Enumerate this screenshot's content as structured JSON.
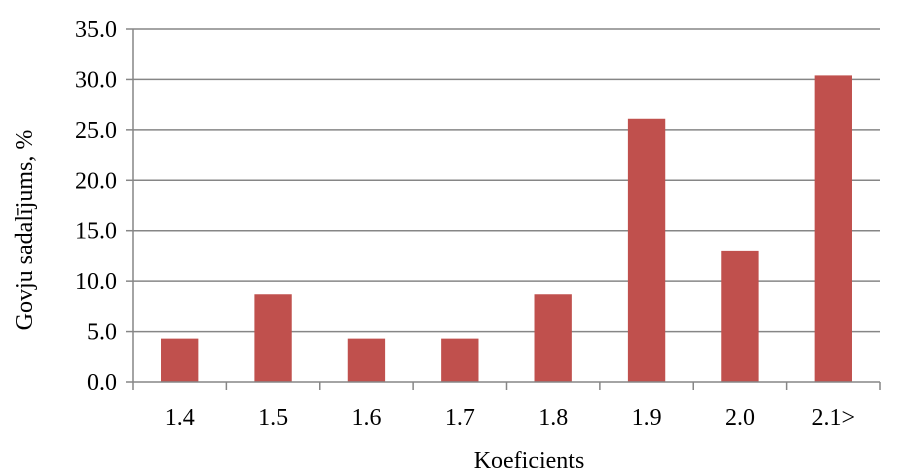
{
  "chart_data": {
    "type": "bar",
    "title": "",
    "xlabel": "Koeficients",
    "ylabel": "Govju sadalījums, %",
    "categories": [
      "1.4",
      "1.5",
      "1.6",
      "1.7",
      "1.8",
      "1.9",
      "2.0",
      "2.1>"
    ],
    "values": [
      4.3,
      8.7,
      4.3,
      4.3,
      8.7,
      26.1,
      13.0,
      30.4
    ],
    "ylim": [
      0,
      35
    ],
    "yticks": [
      "0.0",
      "5.0",
      "10.0",
      "15.0",
      "20.0",
      "25.0",
      "30.0",
      "35.0"
    ],
    "grid": true,
    "legend": "none",
    "bar_color": "#C0504D",
    "grid_color": "#868686"
  }
}
